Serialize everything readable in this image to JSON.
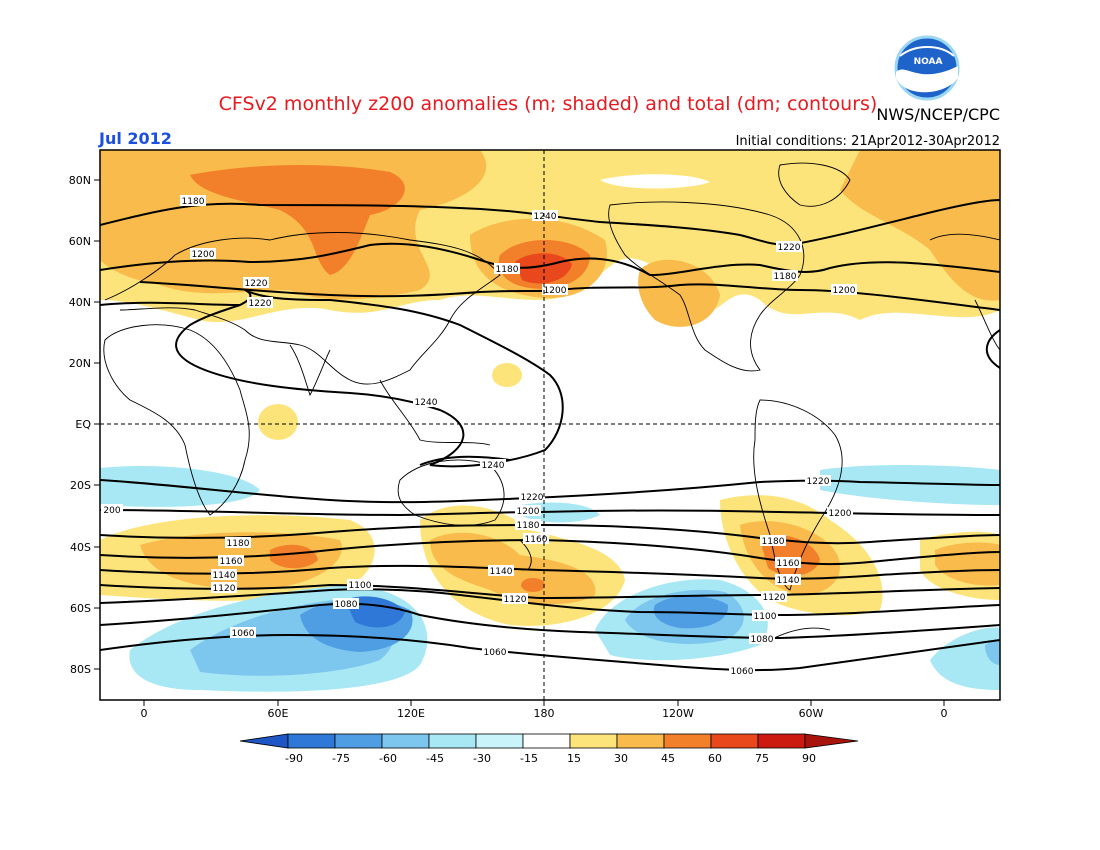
{
  "header": {
    "title": "CFSv2 monthly z200 anomalies (m; shaded) and total (dm; contours)",
    "agency": "NWS/NCEP/CPC",
    "period": "Jul 2012",
    "initial_conditions": "Initial conditions: 21Apr2012-30Apr2012",
    "logo_text": "NOAA"
  },
  "map": {
    "lat_labels": [
      "80N",
      "60N",
      "40N",
      "20N",
      "EQ",
      "20S",
      "40S",
      "60S",
      "80S"
    ],
    "lon_labels": [
      "0",
      "60E",
      "120E",
      "180",
      "120W",
      "60W",
      "0"
    ],
    "contour_labels": [
      {
        "text": "1180"
      },
      {
        "text": "1200"
      },
      {
        "text": "1220"
      },
      {
        "text": "1240"
      },
      {
        "text": "1180"
      },
      {
        "text": "1200"
      },
      {
        "text": "1220"
      },
      {
        "text": "1180"
      },
      {
        "text": "1200"
      },
      {
        "text": "1220"
      },
      {
        "text": "1240"
      },
      {
        "text": "1240"
      },
      {
        "text": "1220"
      },
      {
        "text": "200"
      },
      {
        "text": "1220"
      },
      {
        "text": "1200"
      },
      {
        "text": "1180"
      },
      {
        "text": "1160"
      },
      {
        "text": "1180"
      },
      {
        "text": "1160"
      },
      {
        "text": "1140"
      },
      {
        "text": "1120"
      },
      {
        "text": "1140"
      },
      {
        "text": "1120"
      },
      {
        "text": "1100"
      },
      {
        "text": "1080"
      },
      {
        "text": "1060"
      },
      {
        "text": "1060"
      },
      {
        "text": "1100"
      },
      {
        "text": "1080"
      },
      {
        "text": "1060"
      },
      {
        "text": "1200"
      },
      {
        "text": "1180"
      },
      {
        "text": "1160"
      },
      {
        "text": "1140"
      },
      {
        "text": "1120"
      }
    ],
    "colors": {
      "pos15": "#fde47a",
      "pos30": "#f9bb4b",
      "pos45": "#f27f2a",
      "pos60": "#e8481c",
      "pos75": "#cc1a10",
      "neg15": "#a8e8f4",
      "neg30": "#7dc6ee",
      "neg45": "#4f9ee3",
      "neg60": "#2f78d8",
      "neg75": "#1f56c6",
      "title": "#e8191f",
      "period": "#1b4fe0",
      "land": "#000000"
    }
  },
  "colorbar": {
    "ticks": [
      "-90",
      "-75",
      "-60",
      "-45",
      "-30",
      "-15",
      "15",
      "30",
      "45",
      "60",
      "75",
      "90"
    ],
    "colors": [
      "#1f56c6",
      "#2f78d8",
      "#4f9ee3",
      "#7dc6ee",
      "#a8e8f4",
      "#ffffff",
      "#fde47a",
      "#f9bb4b",
      "#f27f2a",
      "#e8481c",
      "#cc1a10"
    ]
  }
}
